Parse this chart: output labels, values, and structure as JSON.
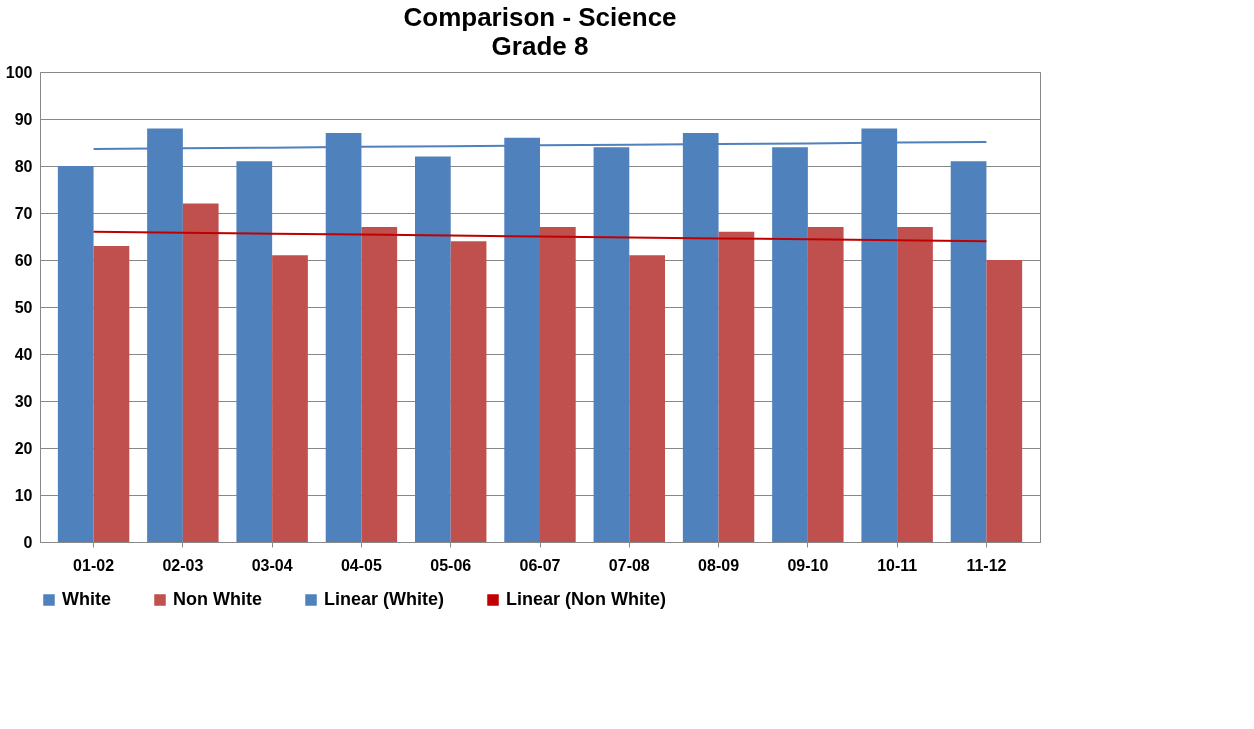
{
  "chart_data": {
    "type": "bar",
    "title": "Comparison - Science",
    "subtitle": "Grade 8",
    "categories": [
      "01-02",
      "02-03",
      "03-04",
      "04-05",
      "05-06",
      "06-07",
      "07-08",
      "08-09",
      "09-10",
      "10-11",
      "11-12"
    ],
    "series": [
      {
        "name": "White",
        "color": "#4f81bd",
        "type": "bar",
        "values": [
          80,
          88,
          81,
          87,
          82,
          86,
          84,
          87,
          84,
          88,
          81
        ]
      },
      {
        "name": "Non White",
        "color": "#c0504d",
        "type": "bar",
        "values": [
          63,
          72,
          61,
          67,
          64,
          67,
          61,
          66,
          67,
          67,
          60
        ]
      },
      {
        "name": "Linear (White)",
        "color": "#4f81bd",
        "type": "line",
        "values": [
          83.6,
          83.8,
          83.9,
          84.1,
          84.2,
          84.4,
          84.5,
          84.7,
          84.8,
          85.0,
          85.1
        ]
      },
      {
        "name": "Linear (Non White)",
        "color": "#c00000",
        "type": "line",
        "values": [
          66,
          65.8,
          65.6,
          65.4,
          65.2,
          65,
          64.8,
          64.6,
          64.4,
          64.2,
          64
        ]
      }
    ],
    "ylim": [
      0,
      100
    ],
    "yticks": [
      0,
      10,
      20,
      30,
      40,
      50,
      60,
      70,
      80,
      90,
      100
    ],
    "grid": "y",
    "legend": "bottom"
  }
}
